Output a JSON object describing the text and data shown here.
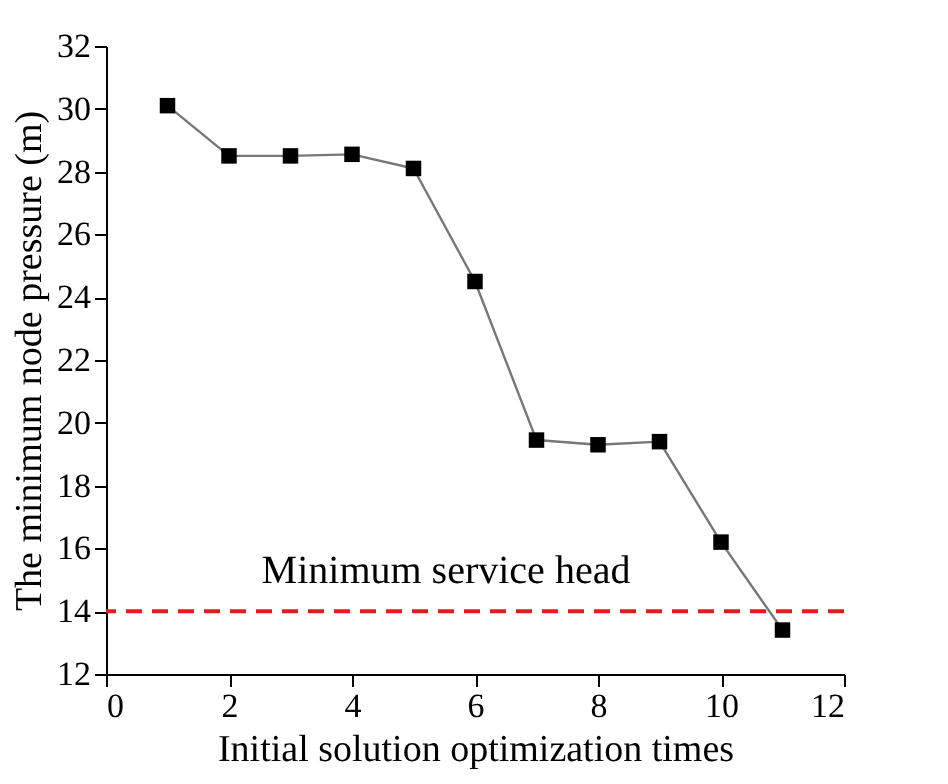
{
  "chart_data": {
    "type": "line",
    "xlabel": "Initial solution optimization times",
    "ylabel": "The minimum node pressure (m)",
    "x": [
      1,
      2,
      3,
      4,
      5,
      6,
      7,
      8,
      9,
      10,
      11
    ],
    "series": [
      {
        "color": "#000000",
        "values": [
          30.1,
          28.5,
          28.5,
          28.55,
          28.1,
          24.5,
          19.45,
          19.3,
          19.4,
          16.2,
          13.4
        ]
      }
    ],
    "xlim": [
      0,
      12
    ],
    "xticks": [
      0,
      2,
      4,
      6,
      8,
      10,
      12
    ],
    "ylim": [
      12,
      32
    ],
    "yticks": [
      12,
      14,
      16,
      18,
      20,
      22,
      24,
      26,
      28,
      30,
      32
    ],
    "ref_lines": [
      {
        "axis": "y",
        "value": 14,
        "label": "Minimum service head",
        "color": "#e41a1c",
        "line_style": "dashed"
      }
    ],
    "marker": "square",
    "grid": false
  }
}
